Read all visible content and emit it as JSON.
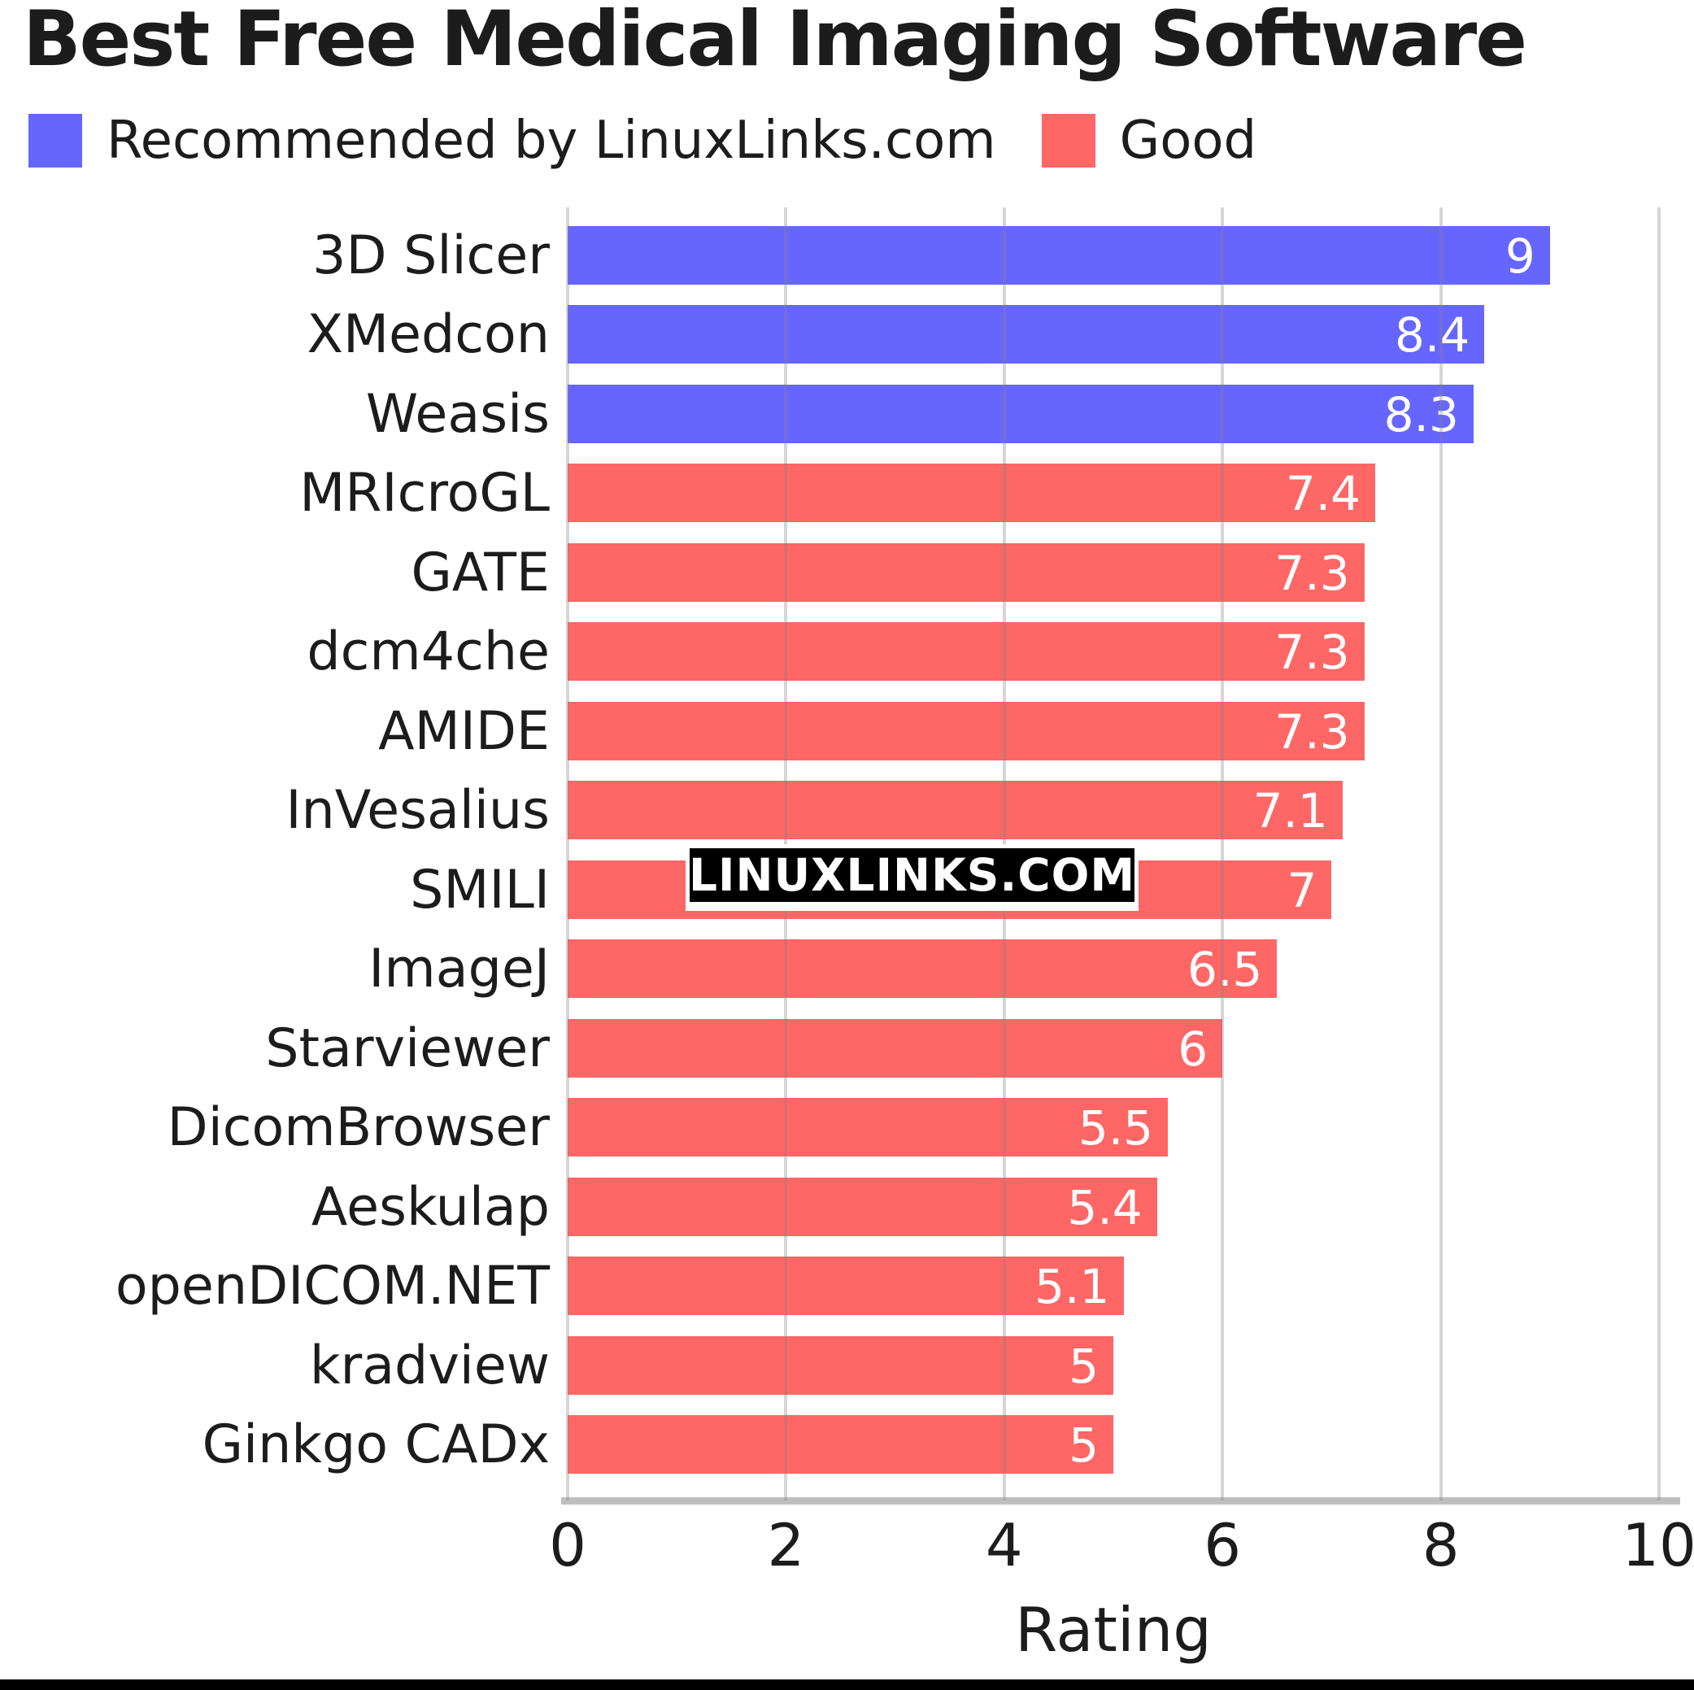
{
  "title": "Best Free Medical Imaging Software",
  "legend": {
    "items": [
      {
        "label": "Recommended by LinuxLinks.com",
        "color": "#6666ff",
        "key": "recommended"
      },
      {
        "label": "Good",
        "color": "#ff6666",
        "key": "good"
      }
    ]
  },
  "watermark": {
    "text": "LINUXLINKS.COM"
  },
  "chart_data": {
    "type": "bar",
    "orientation": "horizontal",
    "title": "Best Free Medical Imaging Software",
    "xlabel": "Rating",
    "xlim": [
      0,
      10
    ],
    "x_ticks": [
      0,
      2,
      4,
      6,
      8,
      10
    ],
    "grid": true,
    "legend_position": "top-left",
    "categories": [
      "3D Slicer",
      "XMedcon",
      "Weasis",
      "MRIcroGL",
      "GATE",
      "dcm4che",
      "AMIDE",
      "InVesalius",
      "SMILI",
      "ImageJ",
      "Starviewer",
      "DicomBrowser",
      "Aeskulap",
      "openDICOM.NET",
      "kradview",
      "Ginkgo CADx"
    ],
    "series": [
      {
        "name": "Recommended by LinuxLinks.com",
        "color": "#6666ff",
        "categories": [
          "3D Slicer",
          "XMedcon",
          "Weasis"
        ],
        "values": [
          9,
          8.4,
          8.3
        ]
      },
      {
        "name": "Good",
        "color": "#ff6666",
        "categories": [
          "MRIcroGL",
          "GATE",
          "dcm4che",
          "AMIDE",
          "InVesalius",
          "SMILI",
          "ImageJ",
          "Starviewer",
          "DicomBrowser",
          "Aeskulap",
          "openDICOM.NET",
          "kradview",
          "Ginkgo CADx"
        ],
        "values": [
          7.4,
          7.3,
          7.3,
          7.3,
          7.1,
          7,
          6.5,
          6,
          5.5,
          5.4,
          5.1,
          5,
          5
        ]
      }
    ],
    "bars": [
      {
        "label": "3D Slicer",
        "value": 9,
        "display": "9",
        "group": "recommended"
      },
      {
        "label": "XMedcon",
        "value": 8.4,
        "display": "8.4",
        "group": "recommended"
      },
      {
        "label": "Weasis",
        "value": 8.3,
        "display": "8.3",
        "group": "recommended"
      },
      {
        "label": "MRIcroGL",
        "value": 7.4,
        "display": "7.4",
        "group": "good"
      },
      {
        "label": "GATE",
        "value": 7.3,
        "display": "7.3",
        "group": "good"
      },
      {
        "label": "dcm4che",
        "value": 7.3,
        "display": "7.3",
        "group": "good"
      },
      {
        "label": "AMIDE",
        "value": 7.3,
        "display": "7.3",
        "group": "good"
      },
      {
        "label": "InVesalius",
        "value": 7.1,
        "display": "7.1",
        "group": "good"
      },
      {
        "label": "SMILI",
        "value": 7,
        "display": "7",
        "group": "good"
      },
      {
        "label": "ImageJ",
        "value": 6.5,
        "display": "6.5",
        "group": "good"
      },
      {
        "label": "Starviewer",
        "value": 6,
        "display": "6",
        "group": "good"
      },
      {
        "label": "DicomBrowser",
        "value": 5.5,
        "display": "5.5",
        "group": "good"
      },
      {
        "label": "Aeskulap",
        "value": 5.4,
        "display": "5.4",
        "group": "good"
      },
      {
        "label": "openDICOM.NET",
        "value": 5.1,
        "display": "5.1",
        "group": "good"
      },
      {
        "label": "kradview",
        "value": 5,
        "display": "5",
        "group": "good"
      },
      {
        "label": "Ginkgo CADx",
        "value": 5,
        "display": "5",
        "group": "good"
      }
    ]
  },
  "colors": {
    "recommended": "#6666ff",
    "good": "#ff6666",
    "grid_rgba": "rgba(130,130,130,0.33)",
    "axis": "#bfbfbf",
    "bar_value_text": "#ffffff",
    "text": "#1c1c1c",
    "watermark_bg": "#000000",
    "watermark_text": "#ffffff",
    "footer_bar": "#000000"
  }
}
